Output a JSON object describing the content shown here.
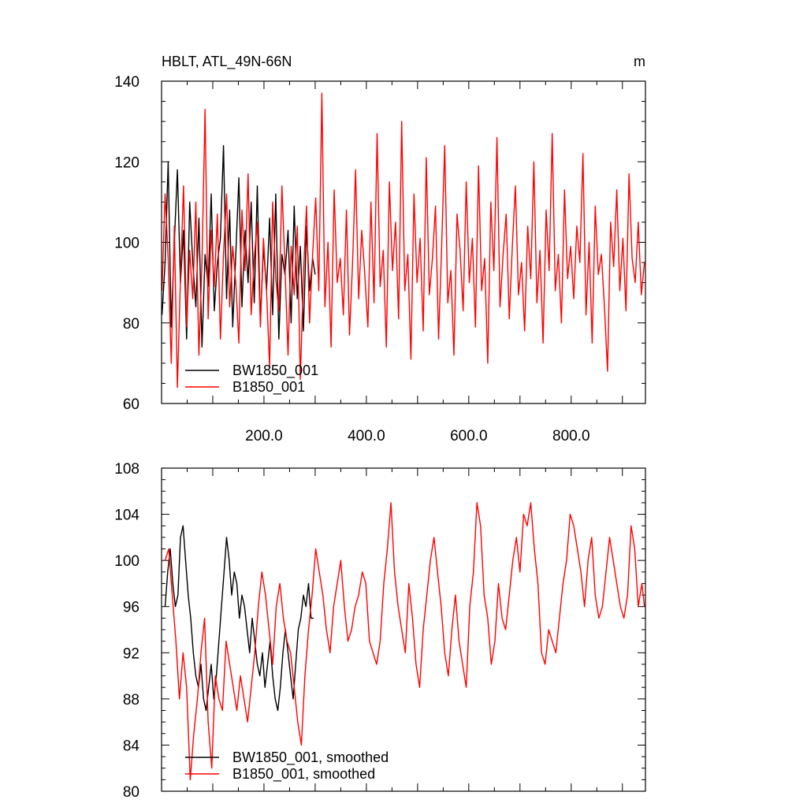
{
  "chart_data": [
    {
      "type": "line",
      "title": "HBLT, ATL_49N-66N",
      "units": "m",
      "xlim": [
        0,
        945
      ],
      "ylim": [
        60,
        140
      ],
      "xticks": [
        200,
        400,
        600,
        800
      ],
      "xtick_labels": [
        "200.0",
        "400.0",
        "600.0",
        "800.0"
      ],
      "yticks": [
        60,
        80,
        100,
        120,
        140
      ],
      "ytick_labels": [
        "60",
        "80",
        "100",
        "120",
        "140"
      ],
      "grid": false,
      "legend_position": "bottom-left",
      "series": [
        {
          "name": "BW1850_001",
          "color": "#000000",
          "x": [
            1,
            7,
            13,
            19,
            25,
            31,
            37,
            43,
            49,
            55,
            61,
            67,
            73,
            79,
            85,
            91,
            97,
            103,
            109,
            115,
            121,
            127,
            133,
            139,
            145,
            151,
            157,
            163,
            169,
            175,
            181,
            187,
            193,
            199,
            205,
            211,
            217,
            223,
            229,
            235,
            241,
            247,
            253,
            259,
            265,
            271,
            277,
            283,
            289,
            295,
            300
          ],
          "values": [
            82,
            95,
            120,
            79,
            100,
            118,
            90,
            103,
            76,
            110,
            95,
            84,
            106,
            74,
            97,
            89,
            112,
            83,
            95,
            101,
            124,
            86,
            108,
            79,
            97,
            116,
            84,
            103,
            90,
            110,
            85,
            114,
            80,
            99,
            88,
            106,
            82,
            112,
            76,
            97,
            92,
            103,
            80,
            109,
            86,
            99,
            78,
            104,
            88,
            96,
            92
          ]
        },
        {
          "name": "B1850_001",
          "color": "#ff0000",
          "x": [
            1,
            7,
            13,
            19,
            25,
            31,
            37,
            43,
            49,
            55,
            61,
            67,
            73,
            79,
            85,
            91,
            97,
            103,
            109,
            115,
            121,
            127,
            133,
            139,
            145,
            151,
            157,
            163,
            169,
            175,
            181,
            187,
            193,
            199,
            205,
            211,
            217,
            223,
            229,
            235,
            241,
            247,
            253,
            259,
            265,
            271,
            277,
            283,
            289,
            295,
            301,
            307,
            313,
            319,
            325,
            331,
            337,
            343,
            349,
            355,
            361,
            367,
            373,
            379,
            385,
            391,
            397,
            403,
            409,
            415,
            421,
            427,
            433,
            439,
            445,
            451,
            457,
            463,
            469,
            475,
            481,
            487,
            493,
            499,
            505,
            511,
            517,
            523,
            529,
            535,
            541,
            547,
            553,
            559,
            565,
            571,
            577,
            583,
            589,
            595,
            601,
            607,
            613,
            619,
            625,
            631,
            637,
            643,
            649,
            655,
            661,
            667,
            673,
            679,
            685,
            691,
            697,
            703,
            709,
            715,
            721,
            727,
            733,
            739,
            745,
            751,
            757,
            763,
            769,
            775,
            781,
            787,
            793,
            799,
            805,
            811,
            817,
            823,
            829,
            835,
            841,
            847,
            853,
            859,
            865,
            871,
            877,
            883,
            889,
            895,
            901,
            907,
            913,
            919,
            925,
            931,
            937,
            943
          ],
          "values": [
            88,
            112,
            96,
            70,
            104,
            64,
            91,
            114,
            79,
            98,
            86,
            110,
            72,
            95,
            133,
            81,
            103,
            89,
            107,
            76,
            97,
            112,
            84,
            99,
            90,
            75,
            108,
            93,
            117,
            82,
            96,
            105,
            79,
            101,
            88,
            69,
            110,
            91,
            83,
            114,
            94,
            72,
            99,
            87,
            104,
            66,
            92,
            109,
            80,
            97,
            111,
            88,
            137,
            84,
            100,
            74,
            113,
            90,
            96,
            82,
            108,
            77,
            95,
            118,
            86,
            103,
            92,
            79,
            110,
            85,
            127,
            89,
            98,
            74,
            115,
            93,
            105,
            81,
            130,
            88,
            97,
            71,
            112,
            90,
            101,
            78,
            121,
            87,
            96,
            109,
            76,
            99,
            124,
            85,
            93,
            72,
            107,
            98,
            83,
            115,
            90,
            101,
            79,
            119,
            88,
            96,
            70,
            110,
            93,
            126,
            84,
            97,
            107,
            81,
            99,
            114,
            87,
            95,
            78,
            104,
            91,
            120,
            85,
            98,
            75,
            108,
            93,
            127,
            88,
            97,
            80,
            113,
            91,
            99,
            86,
            104,
            95,
            122,
            82,
            100,
            75,
            109,
            92,
            97,
            84,
            68,
            105,
            94,
            113,
            88,
            101,
            83,
            117,
            96,
            90,
            105,
            87,
            95
          ]
        }
      ]
    },
    {
      "type": "line",
      "title": "",
      "xlim": [
        0,
        945
      ],
      "ylim": [
        80,
        108
      ],
      "yticks": [
        80,
        84,
        88,
        92,
        96,
        100,
        104,
        108
      ],
      "ytick_labels": [
        "80",
        "84",
        "88",
        "92",
        "96",
        "100",
        "104",
        "108"
      ],
      "grid": false,
      "legend_position": "bottom-left",
      "series": [
        {
          "name": "BW1850_001, smoothed",
          "color": "#000000",
          "x": [
            7,
            12,
            17,
            22,
            27,
            32,
            37,
            42,
            47,
            52,
            57,
            62,
            67,
            72,
            77,
            82,
            87,
            92,
            97,
            102,
            107,
            112,
            117,
            122,
            127,
            132,
            137,
            142,
            147,
            152,
            157,
            162,
            167,
            172,
            177,
            182,
            187,
            192,
            197,
            202,
            207,
            212,
            217,
            222,
            227,
            232,
            237,
            242,
            247,
            252,
            257,
            262,
            267,
            272,
            277,
            282,
            287,
            292,
            297
          ],
          "values": [
            96,
            99,
            101,
            98,
            96,
            97,
            102,
            103,
            100,
            97,
            95,
            92,
            90,
            89,
            91,
            88,
            87,
            89,
            91,
            88,
            90,
            93,
            96,
            99,
            102,
            100,
            97,
            99,
            98,
            95,
            97,
            96,
            94,
            92,
            95,
            93,
            91,
            90,
            92,
            89,
            91,
            93,
            90,
            88,
            87,
            89,
            92,
            94,
            92,
            90,
            88,
            91,
            94,
            95,
            97,
            96,
            98,
            95,
            95
          ]
        },
        {
          "name": "B1850_001, smoothed",
          "color": "#ff0000",
          "x": [
            7,
            14,
            21,
            28,
            35,
            42,
            49,
            56,
            63,
            70,
            77,
            84,
            91,
            98,
            105,
            112,
            119,
            126,
            133,
            140,
            147,
            154,
            161,
            168,
            175,
            182,
            189,
            196,
            203,
            210,
            217,
            224,
            231,
            238,
            245,
            252,
            259,
            266,
            273,
            280,
            287,
            294,
            301,
            308,
            315,
            322,
            329,
            336,
            343,
            350,
            357,
            364,
            371,
            378,
            385,
            392,
            399,
            406,
            413,
            420,
            427,
            434,
            441,
            448,
            455,
            462,
            469,
            476,
            483,
            490,
            497,
            504,
            511,
            518,
            525,
            532,
            539,
            546,
            553,
            560,
            567,
            574,
            581,
            588,
            595,
            602,
            609,
            616,
            623,
            630,
            637,
            644,
            651,
            658,
            665,
            672,
            679,
            686,
            693,
            700,
            707,
            714,
            721,
            728,
            735,
            742,
            749,
            756,
            763,
            770,
            777,
            784,
            791,
            798,
            805,
            812,
            819,
            826,
            833,
            840,
            847,
            854,
            861,
            868,
            875,
            882,
            889,
            896,
            903,
            910,
            917,
            924,
            931,
            938,
            943
          ],
          "values": [
            100,
            101,
            97,
            93,
            88,
            92,
            89,
            81,
            85,
            88,
            92,
            95,
            86,
            82,
            90,
            88,
            87,
            93,
            91,
            89,
            87,
            90,
            88,
            86,
            89,
            92,
            96,
            99,
            97,
            94,
            91,
            96,
            98,
            95,
            93,
            92,
            89,
            86,
            84,
            90,
            94,
            97,
            101,
            99,
            97,
            94,
            92,
            96,
            98,
            100,
            96,
            93,
            94,
            96,
            97,
            99,
            98,
            93,
            92,
            91,
            93,
            98,
            101,
            105,
            99,
            96,
            94,
            92,
            98,
            95,
            91,
            89,
            94,
            97,
            100,
            102,
            99,
            96,
            92,
            90,
            94,
            97,
            93,
            91,
            89,
            96,
            99,
            105,
            103,
            97,
            95,
            91,
            93,
            98,
            95,
            94,
            97,
            100,
            102,
            99,
            104,
            103,
            105,
            101,
            98,
            92,
            91,
            94,
            93,
            92,
            95,
            98,
            100,
            104,
            103,
            101,
            99,
            96,
            100,
            102,
            97,
            95,
            96,
            99,
            102,
            100,
            98,
            96,
            95,
            97,
            103,
            101,
            96,
            98,
            96
          ]
        }
      ]
    }
  ]
}
